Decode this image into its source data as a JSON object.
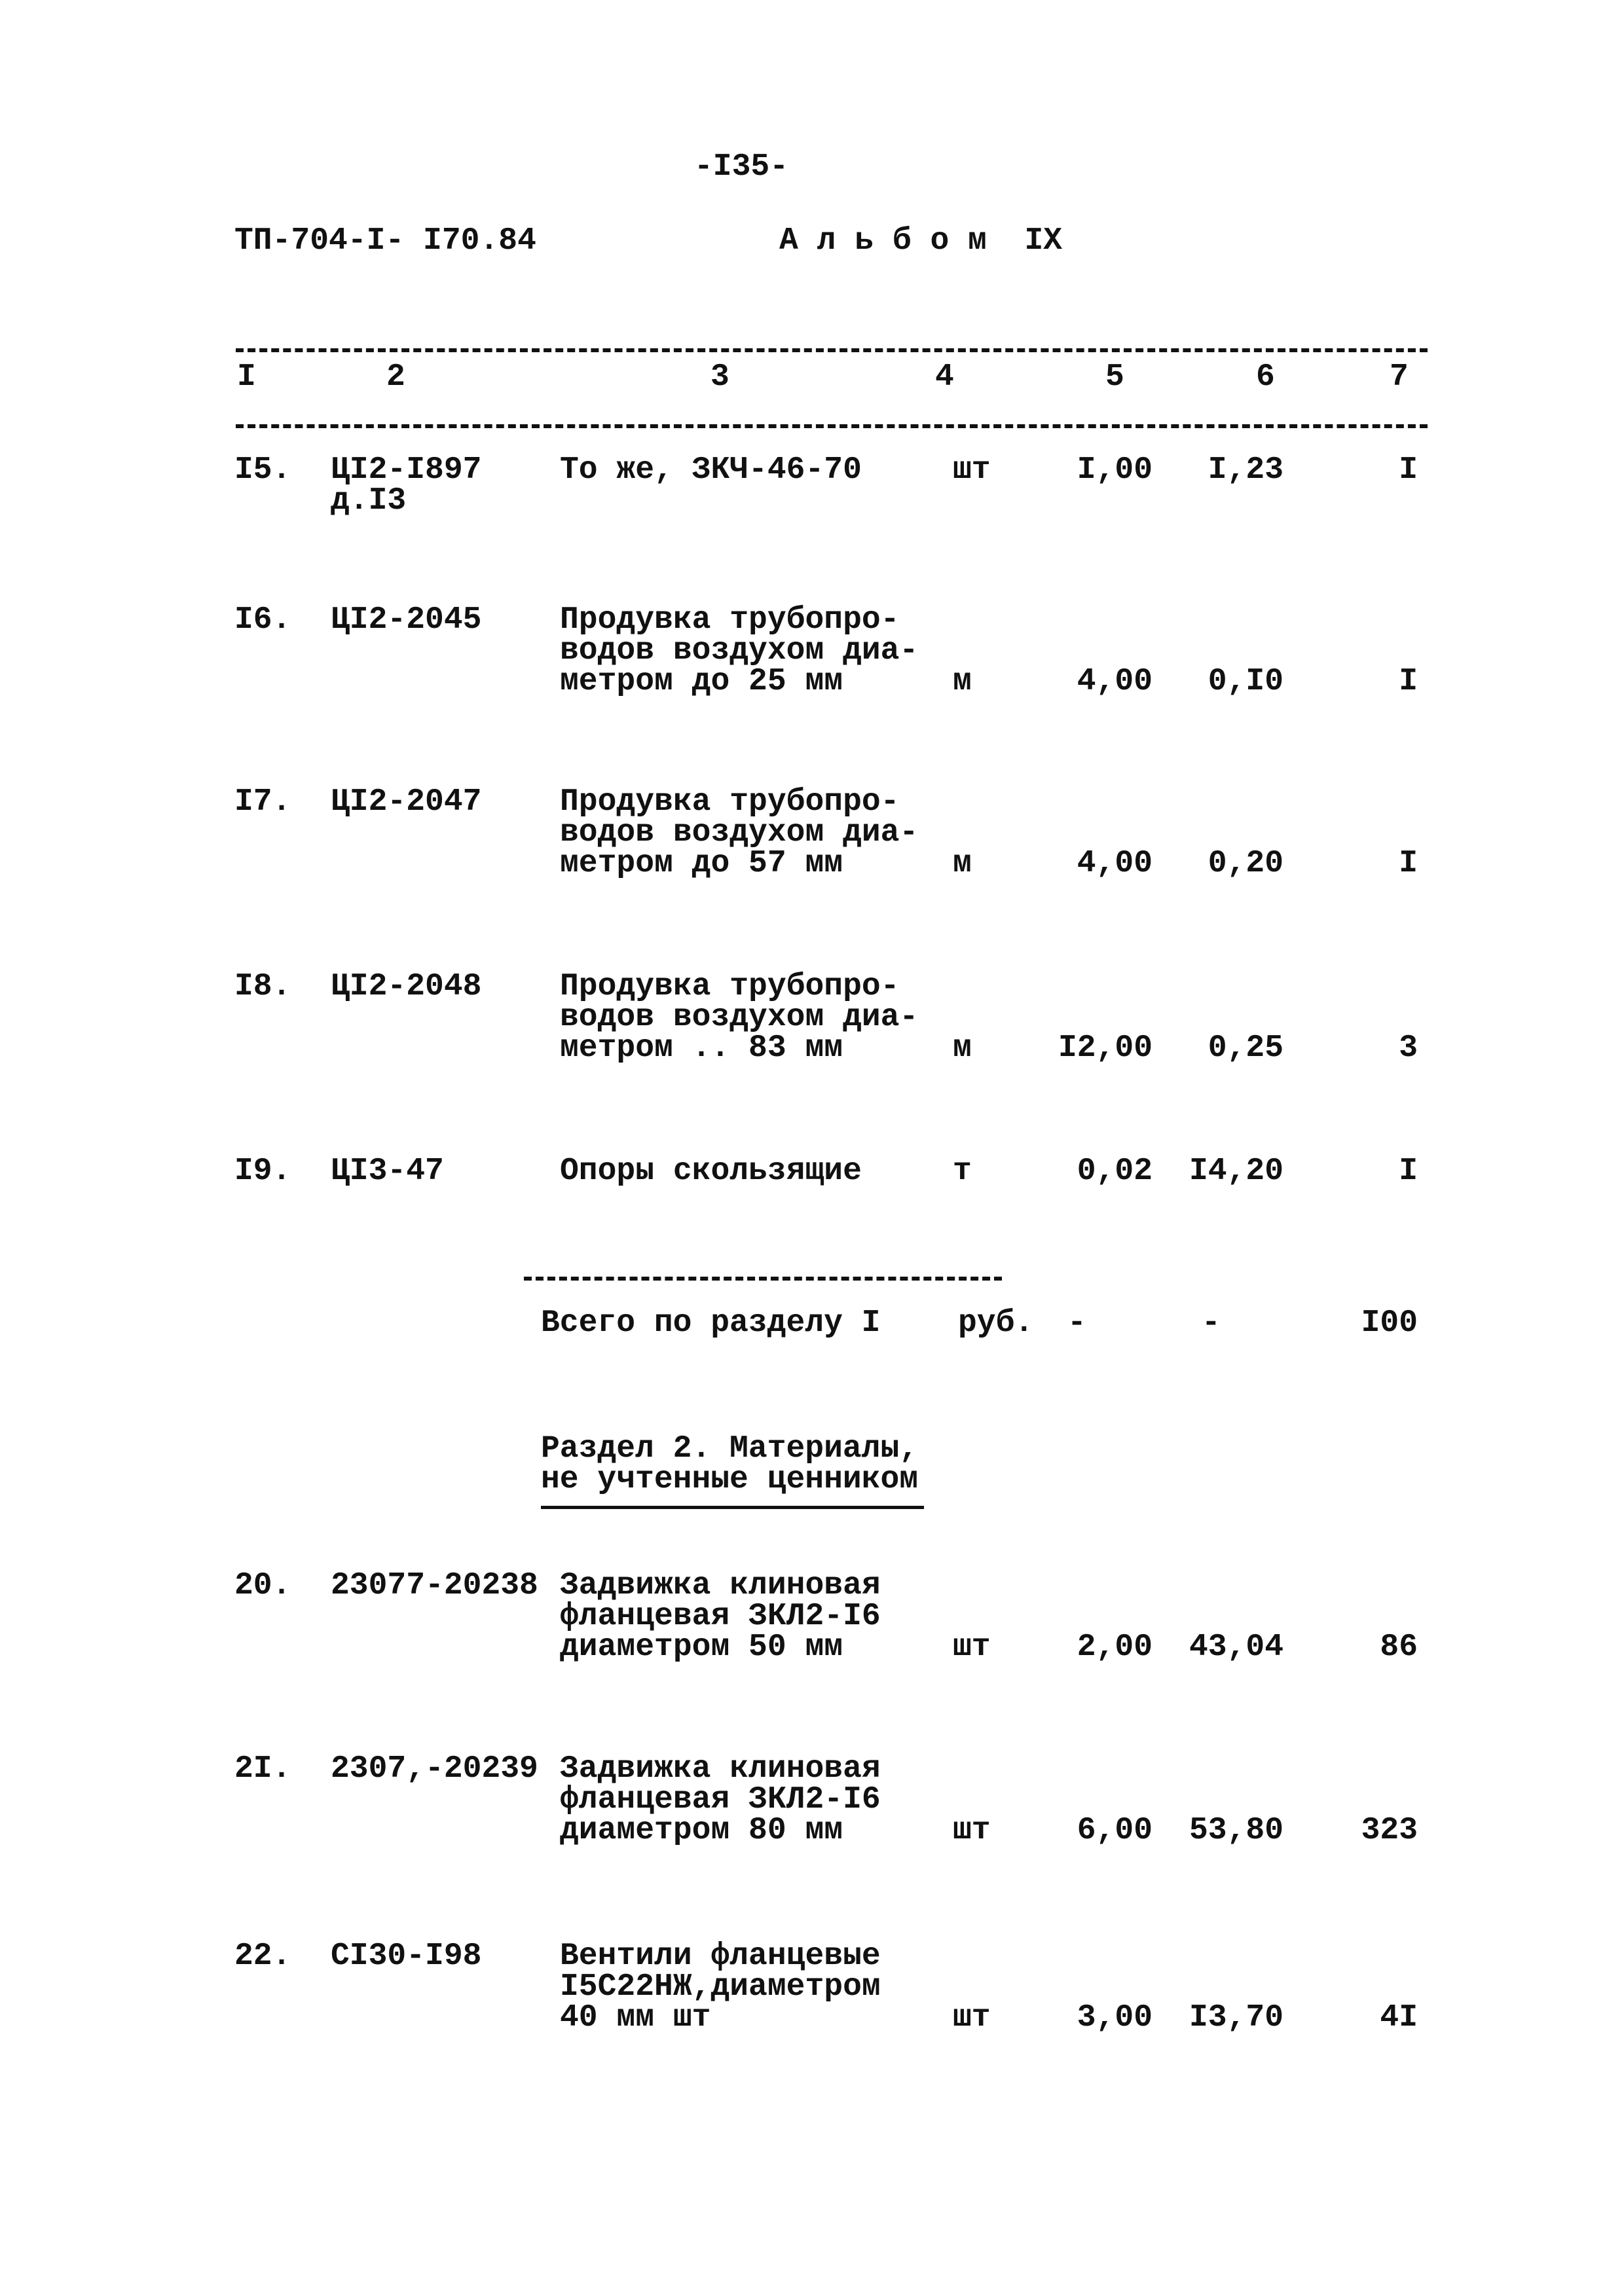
{
  "page_number": "-I35-",
  "doc_code": "ТП-704-I- I70.84",
  "album": "А л ь б о м  IX",
  "columns": [
    "I",
    "2",
    "3",
    "4",
    "5",
    "6",
    "7"
  ],
  "rows": [
    {
      "n": "I5.",
      "code": "ЦI2-I897\nд.I3",
      "desc": "То же, ЗКЧ-46-70",
      "unit": "шт",
      "qty": "I,00",
      "price": "I,23",
      "total": "I"
    },
    {
      "n": "I6.",
      "code": "ЦI2-2045",
      "desc": "Продувка трубопро-\nводов воздухом диа-\nметром до 25 мм",
      "unit": "м",
      "qty": "4,00",
      "price": "0,I0",
      "total": "I"
    },
    {
      "n": "I7.",
      "code": "ЦI2-2047",
      "desc": "Продувка трубопро-\nводов воздухом диа-\nметром до 57 мм",
      "unit": "м",
      "qty": "4,00",
      "price": "0,20",
      "total": "I"
    },
    {
      "n": "I8.",
      "code": "ЦI2-2048",
      "desc": "Продувка трубопро-\nводов воздухом диа-\nметром .. 83 мм",
      "unit": "м",
      "qty": "I2,00",
      "price": "0,25",
      "total": "3"
    },
    {
      "n": "I9.",
      "code": "ЦI3-47",
      "desc": "Опоры скользящие",
      "unit": "т",
      "qty": "0,02",
      "price": "I4,20",
      "total": "I"
    }
  ],
  "subtotal": {
    "label": "Всего по разделу I",
    "unit": "руб.",
    "qty": "-",
    "price": "-",
    "total": "I00"
  },
  "section2": "Раздел 2. Материалы,\nне учтенные ценником",
  "rows2": [
    {
      "n": "20.",
      "code": "23077-20238",
      "desc": "Задвижка клиновая\nфланцевая ЗКЛ2-I6\nдиаметром 50 мм",
      "unit": "шт",
      "qty": "2,00",
      "price": "43,04",
      "total": "86"
    },
    {
      "n": "2I.",
      "code": "2307,-20239",
      "desc": "Задвижка клиновая\nфланцевая ЗКЛ2-I6\nдиаметром 80 мм",
      "unit": "шт",
      "qty": "6,00",
      "price": "53,80",
      "total": "323"
    },
    {
      "n": "22.",
      "code": "CI30-I98",
      "desc": "Вентили фланцевые\nI5С22НЖ,диаметром\n40 мм           шт",
      "unit": "шт",
      "qty": "3,00",
      "price": "I3,70",
      "total": "4I"
    }
  ]
}
